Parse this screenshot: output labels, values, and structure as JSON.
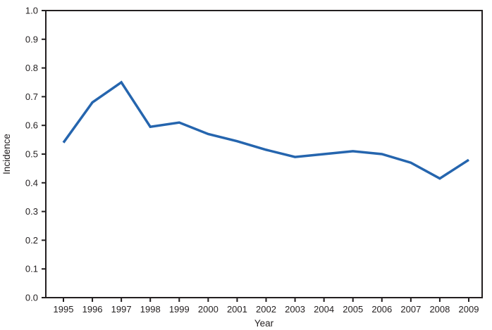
{
  "chart_data": {
    "type": "line",
    "title": "",
    "xlabel": "Year",
    "ylabel": "Incidence",
    "x": [
      1995,
      1996,
      1997,
      1998,
      1999,
      2000,
      2001,
      2002,
      2003,
      2004,
      2005,
      2006,
      2007,
      2008,
      2009
    ],
    "xtick_labels": [
      "1995",
      "1996",
      "1997",
      "1998",
      "1999",
      "2000",
      "2001",
      "2002",
      "2003",
      "2004",
      "2005",
      "2006",
      "2007",
      "2008",
      "2009"
    ],
    "series": [
      {
        "name": "Incidence",
        "values": [
          0.54,
          0.68,
          0.75,
          0.595,
          0.61,
          0.57,
          0.545,
          0.515,
          0.49,
          0.5,
          0.51,
          0.5,
          0.47,
          0.415,
          0.48
        ]
      }
    ],
    "ylim": [
      0.0,
      1.0
    ],
    "ytick_labels": [
      "0.0",
      "0.1",
      "0.2",
      "0.3",
      "0.4",
      "0.5",
      "0.6",
      "0.7",
      "0.8",
      "0.9",
      "1.0"
    ],
    "grid": false,
    "legend": "none",
    "colors": {
      "line": "#2565ae",
      "axis": "#231f20",
      "text": "#231f20",
      "background": "#ffffff"
    }
  }
}
